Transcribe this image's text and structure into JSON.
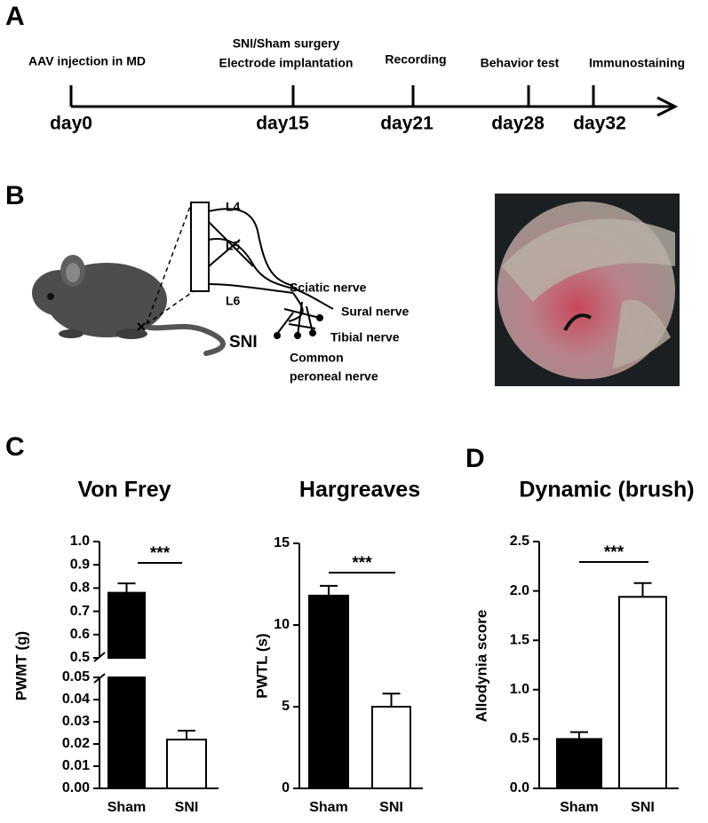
{
  "panels": {
    "a": "A",
    "b": "B",
    "c": "C",
    "d": "D"
  },
  "timeline": {
    "events": [
      {
        "lines": [
          "AAV injection in MD"
        ],
        "day": "day0"
      },
      {
        "lines": [
          "SNI/Sham surgery",
          "Electrode implantation"
        ],
        "day": "day15"
      },
      {
        "lines": [
          "Recording"
        ],
        "day": "day21"
      },
      {
        "lines": [
          "Behavior test"
        ],
        "day": "day28"
      },
      {
        "lines": [
          "Immunostaining"
        ],
        "day": "day32"
      }
    ]
  },
  "diagram": {
    "l4": "L4",
    "l5": "L5",
    "l6": "L6",
    "sciatic": "Sciatic nerve",
    "sural": "Sural nerve",
    "tibial": "Tibial nerve",
    "peroneal": [
      "Common",
      "peroneal nerve"
    ],
    "sni": "SNI"
  },
  "chart_data": [
    {
      "type": "bar",
      "title": "Von Frey",
      "ylabel": "PWMT (g)",
      "categories": [
        "Sham",
        "SNI"
      ],
      "values": [
        0.78,
        0.022
      ],
      "errors": [
        0.04,
        0.004
      ],
      "colors": [
        "#000000",
        "#ffffff"
      ],
      "ylim": [
        0,
        1.0
      ],
      "ybreak": [
        0.05,
        0.5
      ],
      "yticks": [
        {
          "value": 0,
          "label": "0.00"
        },
        0.01,
        0.02,
        0.03,
        0.04,
        0.05,
        0.5,
        0.6,
        0.7,
        0.8,
        0.9,
        {
          "value": 1.0,
          "label": "1.0"
        }
      ],
      "significance": "***"
    },
    {
      "type": "bar",
      "title": "Hargreaves",
      "ylabel": "PWTL (s)",
      "categories": [
        "Sham",
        "SNI"
      ],
      "values": [
        11.8,
        5.0
      ],
      "errors": [
        0.6,
        0.8
      ],
      "colors": [
        "#000000",
        "#ffffff"
      ],
      "ylim": [
        0,
        15
      ],
      "yticks": [
        0,
        5,
        10,
        15
      ],
      "significance": "***"
    },
    {
      "type": "bar",
      "title": "Dynamic (brush)",
      "ylabel": "Allodynia score",
      "categories": [
        "Sham",
        "SNI"
      ],
      "values": [
        0.5,
        1.94
      ],
      "errors": [
        0.07,
        0.14
      ],
      "colors": [
        "#000000",
        "#ffffff"
      ],
      "ylim": [
        0,
        2.5
      ],
      "yticks": [
        {
          "value": 0,
          "label": "0.0"
        },
        0.5,
        {
          "value": 1.0,
          "label": "1.0"
        },
        1.5,
        {
          "value": 2.0,
          "label": "2.0"
        },
        2.5
      ],
      "significance": "***"
    }
  ]
}
